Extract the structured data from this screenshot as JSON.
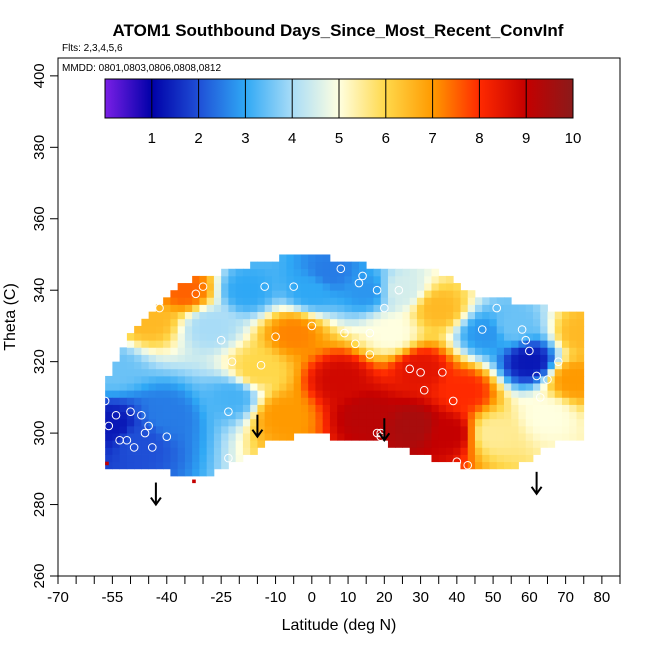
{
  "chart_data": {
    "type": "heatmap",
    "title": "ATOM1 Southbound Days_Since_Most_Recent_ConvInf",
    "flights_label": "Flts: 2,3,4,5,6",
    "mmdd_label": "MMDD: 0801,0803,0806,0808,0812",
    "xlabel": "Latitude (deg N)",
    "ylabel": "Theta (C)",
    "xlim": [
      -70,
      85
    ],
    "ylim": [
      260,
      405
    ],
    "x_ticks": [
      -70,
      -55,
      -40,
      -25,
      -10,
      0,
      10,
      20,
      30,
      40,
      50,
      60,
      70,
      80
    ],
    "x_minor_ticks": [
      -65,
      -60,
      -50,
      -45,
      -35,
      -30,
      -20,
      -15,
      -5,
      5,
      15,
      25,
      35,
      45,
      55,
      65,
      75,
      85
    ],
    "y_ticks": [
      260,
      280,
      300,
      320,
      340,
      360,
      380,
      400
    ],
    "colorbar": {
      "min": 0,
      "max": 10,
      "ticks": [
        1,
        2,
        3,
        4,
        5,
        6,
        7,
        8,
        9,
        10
      ],
      "colors": [
        "#7a1fe6",
        "#0000a8",
        "#1f4fd6",
        "#2fa8f5",
        "#a8dcf7",
        "#ffffe0",
        "#ffd84a",
        "#ff9a00",
        "#ff2a00",
        "#c40000",
        "#8b1a1a"
      ]
    },
    "field": {
      "lat_step": 2.0,
      "theta_step": 2.0,
      "top_boundary": [
        [
          -57,
          312
        ],
        [
          -52,
          324
        ],
        [
          -45,
          333
        ],
        [
          -37,
          340
        ],
        [
          -30,
          343
        ],
        [
          -22,
          345
        ],
        [
          -12,
          347
        ],
        [
          -3,
          350
        ],
        [
          5,
          348
        ],
        [
          15,
          346
        ],
        [
          25,
          345
        ],
        [
          35,
          344
        ],
        [
          45,
          338
        ],
        [
          55,
          336
        ],
        [
          65,
          334
        ],
        [
          70,
          333
        ],
        [
          75,
          332
        ]
      ],
      "bottom_boundary": [
        [
          -57,
          291
        ],
        [
          -50,
          291
        ],
        [
          -40,
          290
        ],
        [
          -30,
          289
        ],
        [
          -20,
          293
        ],
        [
          -13,
          298
        ],
        [
          -5,
          300
        ],
        [
          5,
          300
        ],
        [
          15,
          299
        ],
        [
          25,
          297
        ],
        [
          35,
          293
        ],
        [
          45,
          291
        ],
        [
          55,
          291
        ],
        [
          62,
          295
        ],
        [
          68,
          298
        ],
        [
          75,
          300
        ]
      ],
      "anchors": [
        {
          "lat": -55,
          "theta": 302,
          "value": 1.3
        },
        {
          "lat": -48,
          "theta": 298,
          "value": 2.0
        },
        {
          "lat": -40,
          "theta": 305,
          "value": 2.5
        },
        {
          "lat": -55,
          "theta": 318,
          "value": 3.5
        },
        {
          "lat": -45,
          "theta": 332,
          "value": 6.5
        },
        {
          "lat": -35,
          "theta": 340,
          "value": 7.5
        },
        {
          "lat": -28,
          "theta": 330,
          "value": 4.0
        },
        {
          "lat": -22,
          "theta": 310,
          "value": 3.2
        },
        {
          "lat": -18,
          "theta": 340,
          "value": 3.0
        },
        {
          "lat": -15,
          "theta": 318,
          "value": 6.0
        },
        {
          "lat": -8,
          "theta": 305,
          "value": 7.0
        },
        {
          "lat": -5,
          "theta": 328,
          "value": 7.2
        },
        {
          "lat": 0,
          "theta": 340,
          "value": 3.0
        },
        {
          "lat": 5,
          "theta": 345,
          "value": 2.5
        },
        {
          "lat": 8,
          "theta": 315,
          "value": 8.8
        },
        {
          "lat": 15,
          "theta": 340,
          "value": 2.8
        },
        {
          "lat": 15,
          "theta": 305,
          "value": 9.2
        },
        {
          "lat": 22,
          "theta": 328,
          "value": 5.0
        },
        {
          "lat": 25,
          "theta": 340,
          "value": 4.5
        },
        {
          "lat": 28,
          "theta": 302,
          "value": 9.5
        },
        {
          "lat": 30,
          "theta": 318,
          "value": 8.5
        },
        {
          "lat": 35,
          "theta": 335,
          "value": 6.5
        },
        {
          "lat": 38,
          "theta": 300,
          "value": 9.0
        },
        {
          "lat": 42,
          "theta": 312,
          "value": 8.0
        },
        {
          "lat": 48,
          "theta": 328,
          "value": 2.8
        },
        {
          "lat": 50,
          "theta": 300,
          "value": 5.5
        },
        {
          "lat": 55,
          "theta": 330,
          "value": 3.5
        },
        {
          "lat": 60,
          "theta": 320,
          "value": 1.3
        },
        {
          "lat": 65,
          "theta": 305,
          "value": 5.0
        },
        {
          "lat": 72,
          "theta": 315,
          "value": 7.0
        },
        {
          "lat": 75,
          "theta": 328,
          "value": 6.5
        }
      ],
      "sample_points": [
        [
          -57,
          309
        ],
        [
          -56,
          302
        ],
        [
          -54,
          305
        ],
        [
          -53,
          298
        ],
        [
          -51,
          298
        ],
        [
          -50,
          306
        ],
        [
          -49,
          296
        ],
        [
          -47,
          305
        ],
        [
          -46,
          300
        ],
        [
          -45,
          302
        ],
        [
          -44,
          296
        ],
        [
          -40,
          299
        ],
        [
          -42,
          335
        ],
        [
          -23,
          306
        ],
        [
          -23,
          293
        ],
        [
          -22,
          320
        ],
        [
          -25,
          326
        ],
        [
          -30,
          341
        ],
        [
          -32,
          339
        ],
        [
          -14,
          319
        ],
        [
          -13,
          341
        ],
        [
          -10,
          327
        ],
        [
          -5,
          341
        ],
        [
          0,
          330
        ],
        [
          8,
          346
        ],
        [
          9,
          328
        ],
        [
          12,
          325
        ],
        [
          13,
          342
        ],
        [
          14,
          344
        ],
        [
          16,
          322
        ],
        [
          16,
          328
        ],
        [
          18,
          340
        ],
        [
          18,
          300
        ],
        [
          19,
          299
        ],
        [
          19,
          300
        ],
        [
          20,
          335
        ],
        [
          24,
          340
        ],
        [
          27,
          318
        ],
        [
          30,
          317
        ],
        [
          31,
          312
        ],
        [
          36,
          317
        ],
        [
          39,
          309
        ],
        [
          40,
          292
        ],
        [
          43,
          291
        ],
        [
          47,
          329
        ],
        [
          51,
          335
        ],
        [
          58,
          329
        ],
        [
          59,
          326
        ],
        [
          60,
          323
        ],
        [
          62,
          316
        ],
        [
          63,
          310
        ],
        [
          65,
          315
        ],
        [
          68,
          320
        ]
      ],
      "gap_cells": [
        [
          -57,
          291
        ],
        [
          -33,
          286
        ]
      ]
    },
    "arrows": [
      {
        "lat": -43,
        "theta": 280
      },
      {
        "lat": -15,
        "theta": 299
      },
      {
        "lat": 20,
        "theta": 298
      },
      {
        "lat": 62,
        "theta": 283
      }
    ]
  }
}
